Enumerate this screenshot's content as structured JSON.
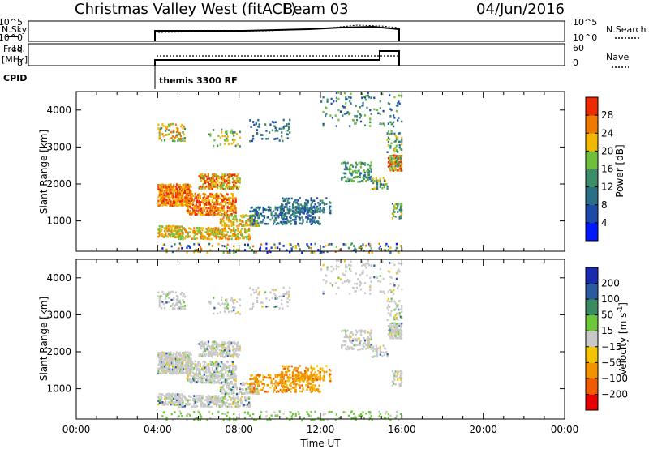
{
  "header": {
    "title": "Christmas Valley West (fitACF)",
    "beam": "Beam 03",
    "date": "04/Jun/2016"
  },
  "top_panels": {
    "nsky_label": "N.Sky",
    "nsky_ticks": [
      "10^5",
      "10^0"
    ],
    "nsky_right_ticks": [
      "10^5",
      "10^0"
    ],
    "nsearch_label": "N.Search",
    "freq_label_1": "Freq.",
    "freq_label_2": "[MHz]",
    "freq_ticks": [
      "18",
      "8"
    ],
    "nave_ticks": [
      "60",
      "0"
    ],
    "nave_label": "Nave",
    "cpid_label": "CPID",
    "cpid_value": "themis 3300 RF"
  },
  "colors": {
    "power_scale": [
      "#0018ff",
      "#1c4aa8",
      "#2a6f86",
      "#3d8c6a",
      "#6fbf3c",
      "#f2b700",
      "#f07a00",
      "#ee2a00"
    ],
    "velocity_scale": [
      "#e80000",
      "#f05a00",
      "#f29200",
      "#f4c400",
      "#c8c8c8",
      "#6cc83a",
      "#3a8a62",
      "#2a5aa0",
      "#1a2ab0"
    ]
  },
  "chart_data": [
    {
      "type": "heatmap",
      "name": "power",
      "ylabel": "Slant Range [km]",
      "xlabel": "",
      "x_ticks": [
        "00:00",
        "04:00",
        "08:00",
        "12:00",
        "16:00",
        "20:00",
        "00:00"
      ],
      "y_ticks": [
        "1000",
        "2000",
        "3000",
        "4000"
      ],
      "xlim_hours": [
        0,
        24
      ],
      "ylim_km": [
        180,
        4500
      ],
      "colorbar_label": "Power [dB]",
      "colorbar_ticks": [
        "4",
        "8",
        "12",
        "16",
        "20",
        "24",
        "28"
      ],
      "colorbar_range": [
        0,
        32
      ],
      "data_window_hours": [
        4,
        16
      ]
    },
    {
      "type": "heatmap",
      "name": "velocity",
      "ylabel": "Slant Range [km]",
      "xlabel": "Time UT",
      "x_ticks": [
        "00:00",
        "04:00",
        "08:00",
        "12:00",
        "16:00",
        "20:00",
        "00:00"
      ],
      "y_ticks": [
        "1000",
        "2000",
        "3000",
        "4000"
      ],
      "xlim_hours": [
        0,
        24
      ],
      "ylim_km": [
        180,
        4500
      ],
      "colorbar_label": "Velocity [m s^-1]",
      "colorbar_ticks": [
        "200",
        "100",
        "50",
        "15",
        "−15",
        "−50",
        "−100",
        "−200"
      ],
      "data_window_hours": [
        4,
        16
      ]
    }
  ]
}
